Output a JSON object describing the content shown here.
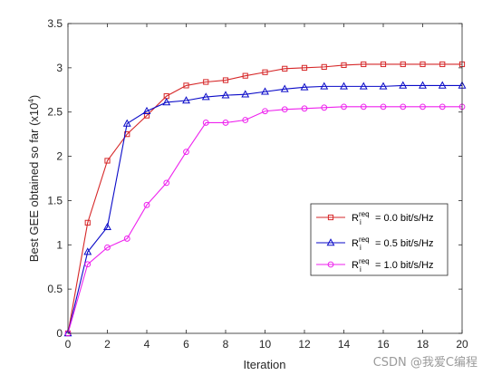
{
  "chart_data": {
    "type": "line",
    "xlabel": "Iteration",
    "ylabel_main": "Best GEE obtained so far (x10",
    "ylabel_exp": "4",
    "ylabel_close": ")",
    "xlim": [
      0,
      20
    ],
    "ylim": [
      0,
      3.5
    ],
    "xticks": [
      "0",
      "2",
      "4",
      "6",
      "8",
      "10",
      "12",
      "14",
      "16",
      "18",
      "20"
    ],
    "yticks": [
      "0",
      "0.5",
      "1",
      "1.5",
      "2",
      "2.5",
      "3",
      "3.5"
    ],
    "grid": false,
    "legend_position": "lower-right",
    "x": [
      0,
      1,
      2,
      3,
      4,
      5,
      6,
      7,
      8,
      9,
      10,
      11,
      12,
      13,
      14,
      15,
      16,
      17,
      18,
      19,
      20
    ],
    "series": [
      {
        "label_base": "R",
        "label_sub": "i",
        "label_sup": "req",
        "label_value": " = 0.0 bit/s/Hz",
        "color": "#d62728",
        "marker": "square",
        "values": [
          0,
          1.25,
          1.95,
          2.25,
          2.46,
          2.68,
          2.8,
          2.84,
          2.86,
          2.91,
          2.95,
          2.99,
          3.0,
          3.01,
          3.03,
          3.04,
          3.04,
          3.04,
          3.04,
          3.04,
          3.04
        ]
      },
      {
        "label_base": "R",
        "label_sub": "i",
        "label_sup": "req",
        "label_value": " = 0.5 bit/s/Hz",
        "color": "#0a0ac8",
        "marker": "triangle",
        "values": [
          0,
          0.92,
          1.2,
          2.37,
          2.51,
          2.61,
          2.63,
          2.67,
          2.69,
          2.7,
          2.73,
          2.76,
          2.78,
          2.79,
          2.79,
          2.79,
          2.79,
          2.8,
          2.8,
          2.8,
          2.8
        ]
      },
      {
        "label_base": "R",
        "label_sub": "i",
        "label_sup": "req",
        "label_value": " = 1.0 bit/s/Hz",
        "color": "#ee22ee",
        "marker": "circle",
        "values": [
          0,
          0.78,
          0.97,
          1.07,
          1.45,
          1.7,
          2.05,
          2.38,
          2.38,
          2.41,
          2.51,
          2.53,
          2.54,
          2.55,
          2.56,
          2.56,
          2.56,
          2.56,
          2.56,
          2.56,
          2.56
        ]
      }
    ]
  },
  "watermark": "CSDN @我爱C编程"
}
